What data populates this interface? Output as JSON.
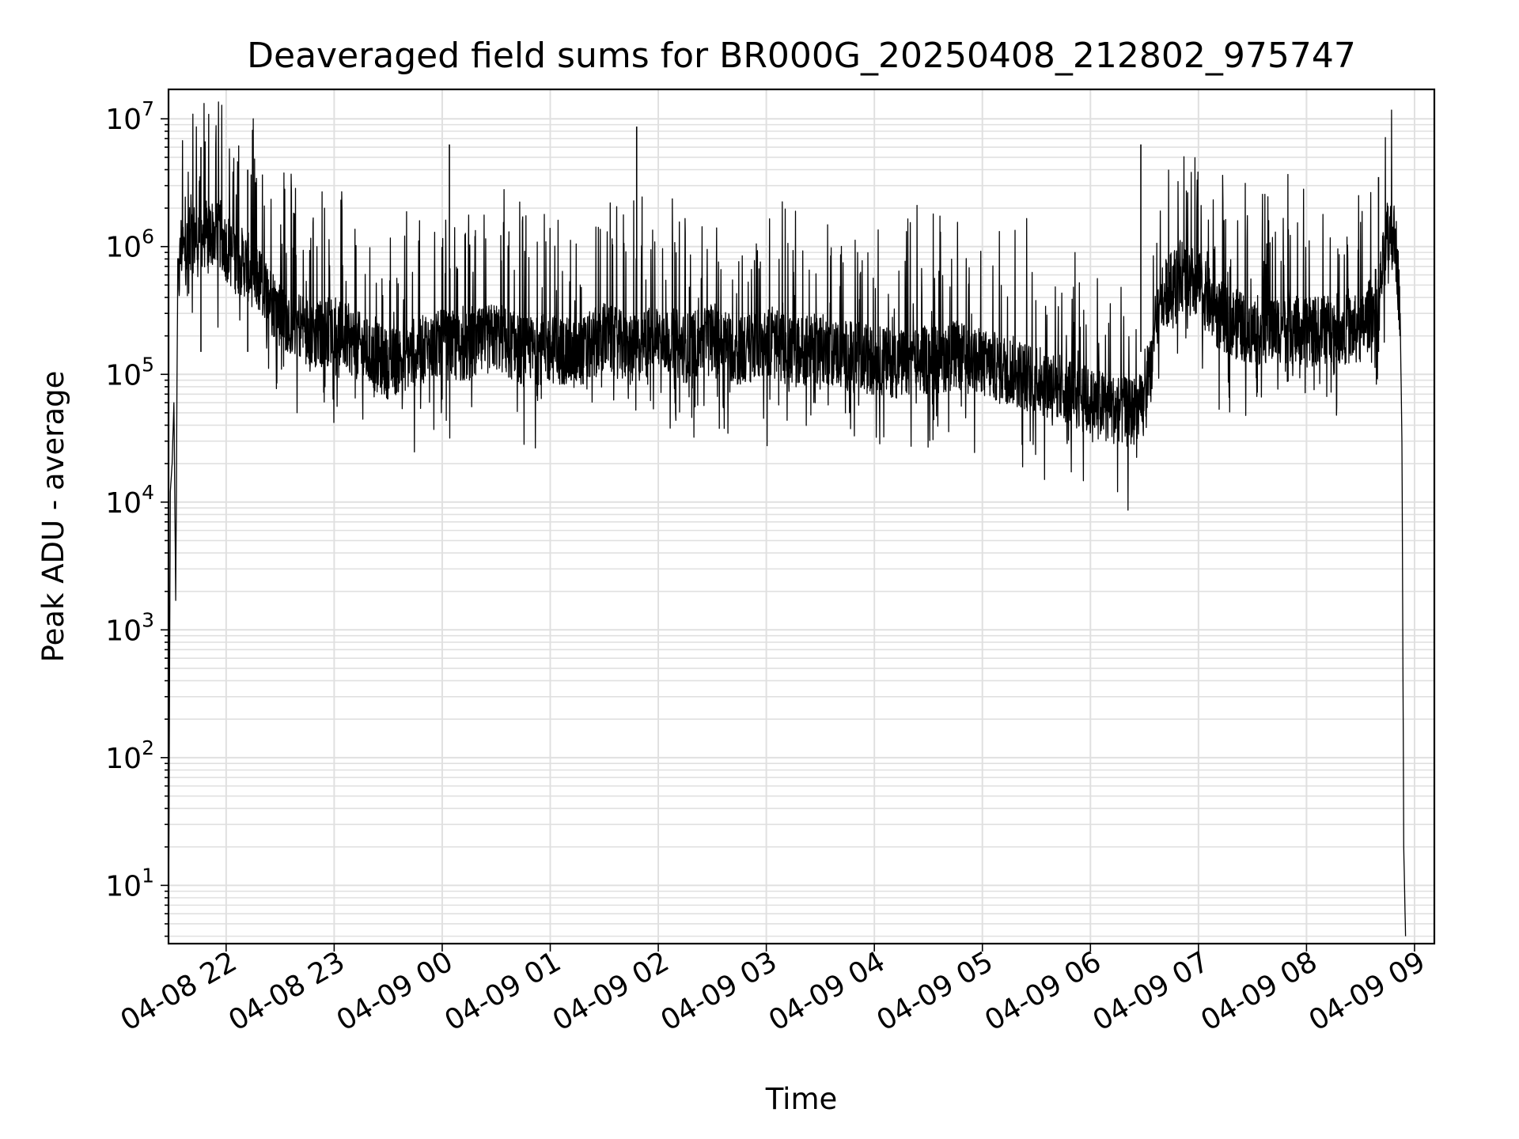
{
  "chart_data": {
    "type": "line",
    "title": "Deaveraged field sums for BR000G_20250408_212802_975747",
    "xlabel": "Time",
    "ylabel": "Peak ADU - average",
    "x_scale": "time",
    "y_scale": "log",
    "grid": true,
    "line_color": "#000000",
    "grid_color": "#e0e0e0",
    "xlim": [
      "2025-04-08 21:28",
      "2025-04-09 09:11"
    ],
    "ylim": [
      3.5,
      17000000
    ],
    "x_ticks": [
      "2025-04-08 22:00",
      "2025-04-08 23:00",
      "2025-04-09 00:00",
      "2025-04-09 01:00",
      "2025-04-09 02:00",
      "2025-04-09 03:00",
      "2025-04-09 04:00",
      "2025-04-09 05:00",
      "2025-04-09 06:00",
      "2025-04-09 07:00",
      "2025-04-09 08:00",
      "2025-04-09 09:00"
    ],
    "x_tick_labels": [
      "04-08 22",
      "04-08 23",
      "04-09 00",
      "04-09 01",
      "04-09 02",
      "04-09 03",
      "04-09 04",
      "04-09 05",
      "04-09 06",
      "04-09 07",
      "04-09 08",
      "04-09 09"
    ],
    "y_ticks": [
      10,
      100,
      1000,
      10000,
      100000,
      1000000,
      10000000
    ],
    "y_tick_labels": [
      {
        "base": "10",
        "exp": "1"
      },
      {
        "base": "10",
        "exp": "2"
      },
      {
        "base": "10",
        "exp": "3"
      },
      {
        "base": "10",
        "exp": "4"
      },
      {
        "base": "10",
        "exp": "5"
      },
      {
        "base": "10",
        "exp": "6"
      },
      {
        "base": "10",
        "exp": "7"
      }
    ],
    "series": [
      {
        "x": [
          "2025-04-08 21:28",
          "2025-04-08 21:29",
          "2025-04-08 21:30",
          "2025-04-08 21:31",
          "2025-04-08 21:32",
          "2025-04-08 21:33",
          "2025-04-08 21:35",
          "2025-04-08 21:37",
          "2025-04-08 21:40",
          "2025-04-08 21:45",
          "2025-04-08 21:50",
          "2025-04-08 21:55",
          "2025-04-08 22:00",
          "2025-04-08 22:05",
          "2025-04-08 22:10",
          "2025-04-08 22:20",
          "2025-04-08 22:30",
          "2025-04-08 22:40",
          "2025-04-08 22:50",
          "2025-04-08 23:00",
          "2025-04-08 23:15",
          "2025-04-08 23:30",
          "2025-04-08 23:45",
          "2025-04-09 00:00",
          "2025-04-09 00:15",
          "2025-04-09 00:30",
          "2025-04-09 00:45",
          "2025-04-09 01:00",
          "2025-04-09 01:15",
          "2025-04-09 01:30",
          "2025-04-09 01:45",
          "2025-04-09 02:00",
          "2025-04-09 02:15",
          "2025-04-09 02:30",
          "2025-04-09 02:45",
          "2025-04-09 03:00",
          "2025-04-09 03:15",
          "2025-04-09 03:30",
          "2025-04-09 03:45",
          "2025-04-09 04:00",
          "2025-04-09 04:15",
          "2025-04-09 04:30",
          "2025-04-09 04:45",
          "2025-04-09 05:00",
          "2025-04-09 05:15",
          "2025-04-09 05:30",
          "2025-04-09 05:45",
          "2025-04-09 06:00",
          "2025-04-09 06:10",
          "2025-04-09 06:20",
          "2025-04-09 06:30",
          "2025-04-09 06:40",
          "2025-04-09 06:50",
          "2025-04-09 07:00",
          "2025-04-09 07:10",
          "2025-04-09 07:20",
          "2025-04-09 07:30",
          "2025-04-09 07:45",
          "2025-04-09 08:00",
          "2025-04-09 08:15",
          "2025-04-09 08:30",
          "2025-04-09 08:40",
          "2025-04-09 08:45",
          "2025-04-09 08:48",
          "2025-04-09 08:50",
          "2025-04-09 08:52",
          "2025-04-09 08:53",
          "2025-04-09 08:54",
          "2025-04-09 08:55"
        ],
        "values": [
          4,
          12000,
          20000,
          60000,
          1700,
          400000,
          1000000,
          900000,
          1100000,
          1300000,
          1200000,
          1400000,
          1000000,
          800000,
          750000,
          500000,
          300000,
          250000,
          200000,
          230000,
          160000,
          120000,
          150000,
          170000,
          160000,
          200000,
          150000,
          160000,
          140000,
          200000,
          150000,
          200000,
          160000,
          200000,
          150000,
          180000,
          150000,
          160000,
          140000,
          130000,
          120000,
          130000,
          140000,
          120000,
          110000,
          90000,
          80000,
          60000,
          55000,
          50000,
          55000,
          400000,
          600000,
          500000,
          300000,
          250000,
          220000,
          230000,
          210000,
          230000,
          220000,
          400000,
          1200000,
          1300000,
          900000,
          300000,
          30000,
          20,
          4
        ]
      }
    ],
    "spikes": [
      {
        "x": "2025-04-08 21:46",
        "y": 6000000
      },
      {
        "x": "2025-04-08 22:12",
        "y": 4000000
      },
      {
        "x": "2025-04-09 00:04",
        "y": 6300000
      },
      {
        "x": "2025-04-09 01:48",
        "y": 8700000
      },
      {
        "x": "2025-04-09 06:28",
        "y": 6300000
      },
      {
        "x": "2025-04-09 08:40",
        "y": 3500000
      }
    ]
  }
}
